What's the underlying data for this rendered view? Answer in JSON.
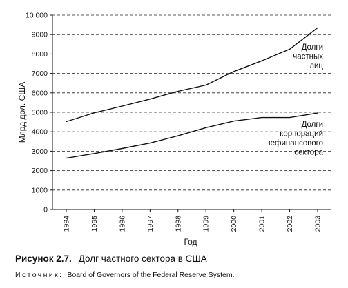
{
  "chart_data": {
    "type": "line",
    "ylabel": "Млрд дол. США",
    "xlabel": "Год",
    "ylim": [
      0,
      10000
    ],
    "yticks": [
      "0",
      "1000",
      "2000",
      "3000",
      "4000",
      "5000",
      "6000",
      "7000",
      "8000",
      "9000",
      "10 000"
    ],
    "ytick_values": [
      0,
      1000,
      2000,
      3000,
      4000,
      5000,
      6000,
      7000,
      8000,
      9000,
      10000
    ],
    "x": [
      "1994",
      "1995",
      "1996",
      "1997",
      "1998",
      "1999",
      "2000",
      "2001",
      "2002",
      "2003"
    ],
    "grid": "horizontal dashed",
    "series": [
      {
        "name_lines": [
          "Долги",
          "частных",
          "лиц"
        ],
        "values": [
          4520,
          4970,
          5320,
          5680,
          6080,
          6400,
          7100,
          7650,
          8250,
          9350
        ]
      },
      {
        "name_lines": [
          "Долги",
          "корпораций",
          "нефинансового",
          "сектора"
        ],
        "values": [
          2640,
          2880,
          3140,
          3420,
          3790,
          4210,
          4550,
          4730,
          4730,
          4960
        ]
      }
    ],
    "colors": {
      "line": "#111111",
      "grid": "#222222"
    }
  },
  "caption": {
    "figure_number": "Рисунок 2.7.",
    "title": "Долг частного сектора в США"
  },
  "source": {
    "label": "Источник:",
    "text": "Board of Governors of the Federal Reserve System."
  }
}
